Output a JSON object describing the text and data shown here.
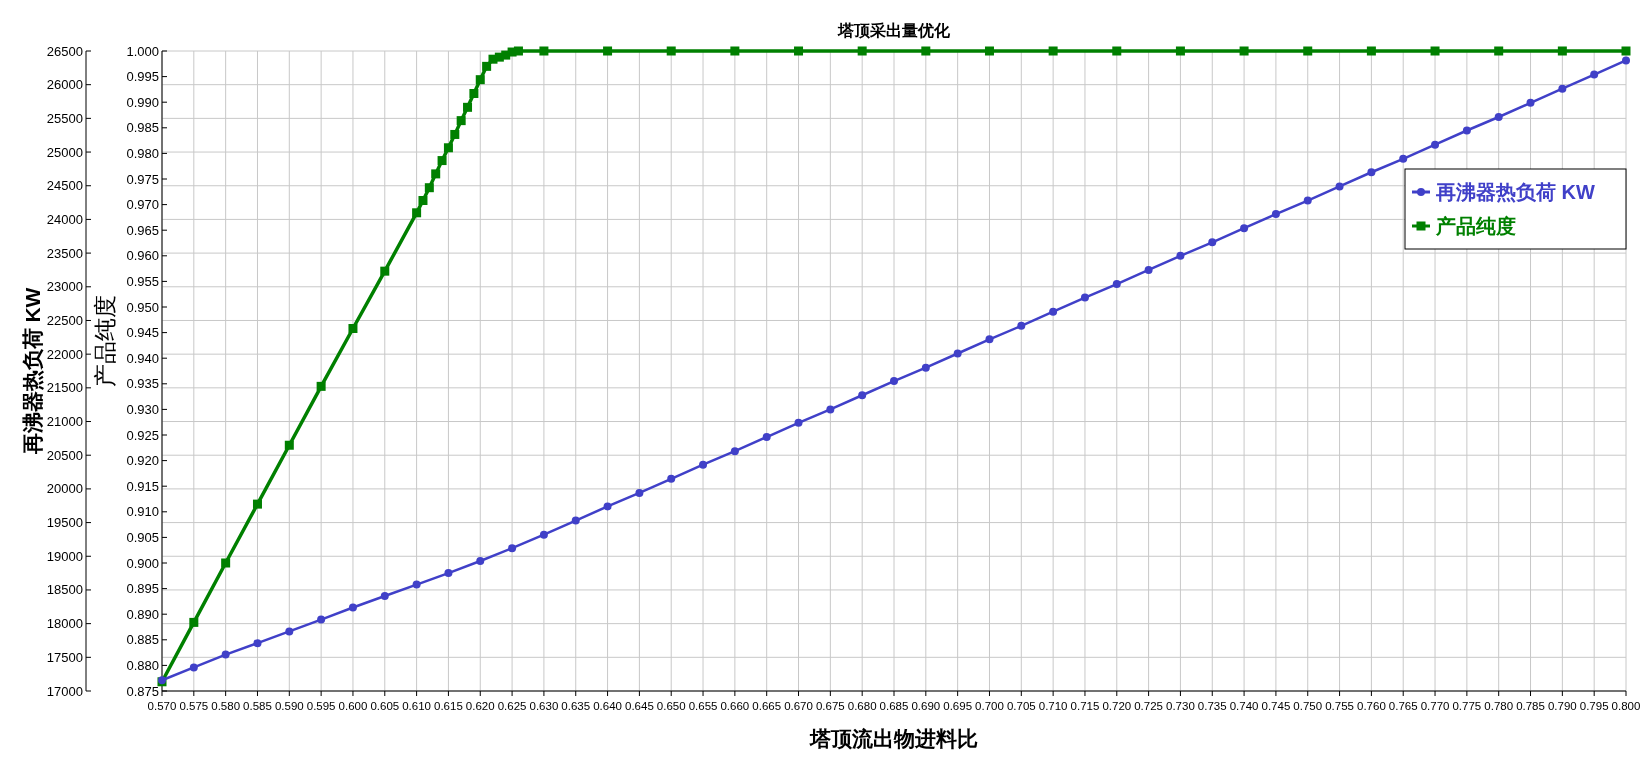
{
  "chart_data": {
    "type": "line",
    "title": "塔顶采出量优化",
    "xlabel": "塔顶流出物进料比",
    "ylabel": "再沸器热负荷 KW",
    "y2label": "产品纯度",
    "xlim": [
      0.57,
      0.8
    ],
    "xticks": [
      {
        "value": 0.57,
        "label": "0.570"
      },
      {
        "value": 0.575,
        "label": "0.575"
      },
      {
        "value": 0.58,
        "label": "0.580"
      },
      {
        "value": 0.585,
        "label": "0.585"
      },
      {
        "value": 0.59,
        "label": "0.590"
      },
      {
        "value": 0.595,
        "label": "0.595"
      },
      {
        "value": 0.6,
        "label": "0.600"
      },
      {
        "value": 0.605,
        "label": "0.605"
      },
      {
        "value": 0.61,
        "label": "0.610"
      },
      {
        "value": 0.615,
        "label": "0.615"
      },
      {
        "value": 0.62,
        "label": "0.620"
      },
      {
        "value": 0.625,
        "label": "0.625"
      },
      {
        "value": 0.63,
        "label": "0.630"
      },
      {
        "value": 0.635,
        "label": "0.635"
      },
      {
        "value": 0.64,
        "label": "0.640"
      },
      {
        "value": 0.645,
        "label": "0.645"
      },
      {
        "value": 0.65,
        "label": "0.650"
      },
      {
        "value": 0.655,
        "label": "0.655"
      },
      {
        "value": 0.66,
        "label": "0.660"
      },
      {
        "value": 0.665,
        "label": "0.665"
      },
      {
        "value": 0.67,
        "label": "0.670"
      },
      {
        "value": 0.675,
        "label": "0.675"
      },
      {
        "value": 0.68,
        "label": "0.680"
      },
      {
        "value": 0.685,
        "label": "0.685"
      },
      {
        "value": 0.69,
        "label": "0.690"
      },
      {
        "value": 0.695,
        "label": "0.695"
      },
      {
        "value": 0.7,
        "label": "0.700"
      },
      {
        "value": 0.705,
        "label": "0.705"
      },
      {
        "value": 0.71,
        "label": "0.710"
      },
      {
        "value": 0.715,
        "label": "0.715"
      },
      {
        "value": 0.72,
        "label": "0.720"
      },
      {
        "value": 0.725,
        "label": "0.725"
      },
      {
        "value": 0.73,
        "label": "0.730"
      },
      {
        "value": 0.735,
        "label": "0.735"
      },
      {
        "value": 0.74,
        "label": "0.740"
      },
      {
        "value": 0.745,
        "label": "0.745"
      },
      {
        "value": 0.75,
        "label": "0.750"
      },
      {
        "value": 0.755,
        "label": "0.755"
      },
      {
        "value": 0.76,
        "label": "0.760"
      },
      {
        "value": 0.765,
        "label": "0.765"
      },
      {
        "value": 0.77,
        "label": "0.770"
      },
      {
        "value": 0.775,
        "label": "0.775"
      },
      {
        "value": 0.78,
        "label": "0.780"
      },
      {
        "value": 0.785,
        "label": "0.785"
      },
      {
        "value": 0.79,
        "label": "0.790"
      },
      {
        "value": 0.795,
        "label": "0.795"
      },
      {
        "value": 0.8,
        "label": "0.800"
      }
    ],
    "ylim": [
      17000,
      26500
    ],
    "yticks": [
      17000,
      17500,
      18000,
      18500,
      19000,
      19500,
      20000,
      20500,
      21000,
      21500,
      22000,
      22500,
      23000,
      23500,
      24000,
      24500,
      25000,
      25500,
      26000,
      26500
    ],
    "y2lim": [
      0.875,
      1.0
    ],
    "y2ticks": [
      {
        "value": 0.875,
        "label": "0.875"
      },
      {
        "value": 0.88,
        "label": "0.880"
      },
      {
        "value": 0.885,
        "label": "0.885"
      },
      {
        "value": 0.89,
        "label": "0.890"
      },
      {
        "value": 0.895,
        "label": "0.895"
      },
      {
        "value": 0.9,
        "label": "0.900"
      },
      {
        "value": 0.905,
        "label": "0.905"
      },
      {
        "value": 0.91,
        "label": "0.910"
      },
      {
        "value": 0.915,
        "label": "0.915"
      },
      {
        "value": 0.92,
        "label": "0.920"
      },
      {
        "value": 0.925,
        "label": "0.925"
      },
      {
        "value": 0.93,
        "label": "0.930"
      },
      {
        "value": 0.935,
        "label": "0.935"
      },
      {
        "value": 0.94,
        "label": "0.940"
      },
      {
        "value": 0.945,
        "label": "0.945"
      },
      {
        "value": 0.95,
        "label": "0.950"
      },
      {
        "value": 0.955,
        "label": "0.955"
      },
      {
        "value": 0.96,
        "label": "0.960"
      },
      {
        "value": 0.965,
        "label": "0.965"
      },
      {
        "value": 0.97,
        "label": "0.970"
      },
      {
        "value": 0.975,
        "label": "0.975"
      },
      {
        "value": 0.98,
        "label": "0.980"
      },
      {
        "value": 0.985,
        "label": "0.985"
      },
      {
        "value": 0.99,
        "label": "0.990"
      },
      {
        "value": 0.995,
        "label": "0.995"
      },
      {
        "value": 1.0,
        "label": "1.000"
      }
    ],
    "grid": true,
    "legend": "right",
    "series": [
      {
        "name": "再沸器热负荷 KW",
        "color": "#4040c8",
        "marker": "circle",
        "x": [
          0.57,
          0.575,
          0.58,
          0.585,
          0.59,
          0.595,
          0.6,
          0.605,
          0.61,
          0.615,
          0.62,
          0.625,
          0.63,
          0.635,
          0.64,
          0.645,
          0.65,
          0.655,
          0.66,
          0.665,
          0.67,
          0.675,
          0.68,
          0.685,
          0.69,
          0.695,
          0.7,
          0.705,
          0.71,
          0.715,
          0.72,
          0.725,
          0.73,
          0.735,
          0.74,
          0.745,
          0.75,
          0.755,
          0.76,
          0.765,
          0.77,
          0.775,
          0.78,
          0.785,
          0.79,
          0.795,
          0.8
        ],
        "values": [
          17160,
          17350,
          17540,
          17710,
          17885,
          18060,
          18240,
          18410,
          18580,
          18750,
          18930,
          19120,
          19320,
          19530,
          19740,
          19940,
          20150,
          20360,
          20560,
          20770,
          20980,
          21180,
          21390,
          21600,
          21800,
          22010,
          22220,
          22420,
          22630,
          22840,
          23040,
          23250,
          23460,
          23660,
          23870,
          24080,
          24280,
          24490,
          24700,
          24900,
          25110,
          25320,
          25520,
          25730,
          25940,
          26150,
          26360
        ]
      },
      {
        "name": "产品纯度",
        "color": "#008000",
        "marker": "square",
        "axis": "y2",
        "x": [
          0.57,
          0.575,
          0.58,
          0.585,
          0.59,
          0.595,
          0.6,
          0.605,
          0.61,
          0.611,
          0.612,
          0.613,
          0.614,
          0.615,
          0.616,
          0.617,
          0.618,
          0.619,
          0.62,
          0.621,
          0.622,
          0.623,
          0.624,
          0.625,
          0.626,
          0.63,
          0.64,
          0.65,
          0.66,
          0.67,
          0.68,
          0.69,
          0.7,
          0.71,
          0.72,
          0.73,
          0.74,
          0.75,
          0.76,
          0.77,
          0.78,
          0.79,
          0.8
        ],
        "values": [
          0.8768,
          0.8884,
          0.9,
          0.9115,
          0.923,
          0.9345,
          0.9458,
          0.957,
          0.9684,
          0.9708,
          0.9733,
          0.976,
          0.9786,
          0.9811,
          0.9837,
          0.9864,
          0.989,
          0.9917,
          0.9944,
          0.997,
          0.9984,
          0.9988,
          0.9992,
          0.9998,
          1.0,
          1.0,
          1.0,
          1.0,
          1.0,
          1.0,
          1.0,
          1.0,
          1.0,
          1.0,
          1.0,
          1.0,
          1.0,
          1.0,
          1.0,
          1.0,
          1.0,
          1.0,
          1.0
        ]
      }
    ]
  }
}
